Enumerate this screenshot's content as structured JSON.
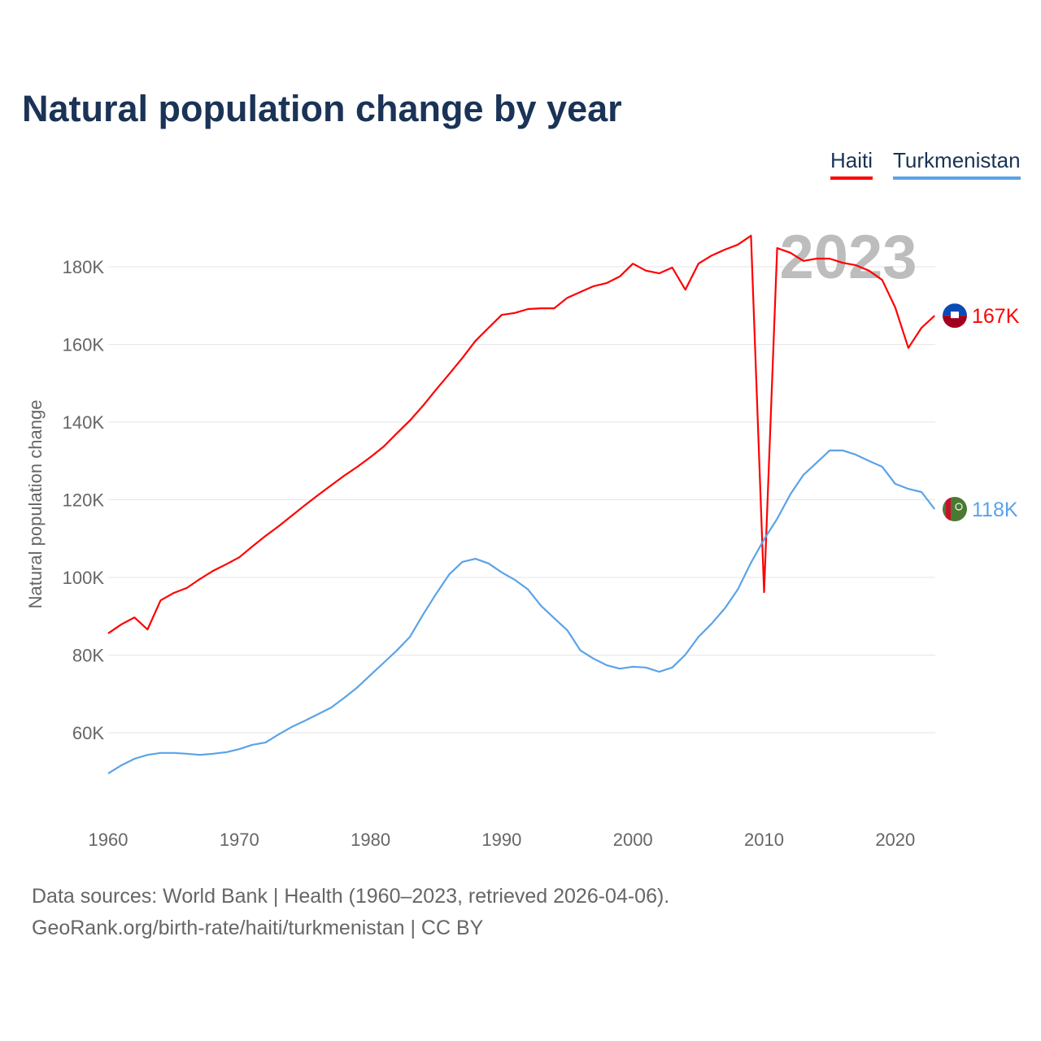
{
  "title": "Natural population change by year",
  "footer": {
    "line1": "Data sources: World Bank | Health (1960–2023, retrieved 2026-04-06).",
    "line2": "GeoRank.org/birth-rate/haiti/turkmenistan | CC BY"
  },
  "chart_data": {
    "type": "line",
    "title": "Natural population change by year",
    "xlabel": "",
    "ylabel": "Natural population change",
    "year_label": "2023",
    "xlim": [
      1960,
      2023
    ],
    "ylim": [
      40000,
      192000
    ],
    "x_ticks": [
      "1960",
      "1970",
      "1980",
      "1990",
      "2000",
      "2010",
      "2020"
    ],
    "y_ticks": [
      {
        "value": 60000,
        "label": "60K"
      },
      {
        "value": 80000,
        "label": "80K"
      },
      {
        "value": 100000,
        "label": "100K"
      },
      {
        "value": 120000,
        "label": "120K"
      },
      {
        "value": 140000,
        "label": "140K"
      },
      {
        "value": 160000,
        "label": "160K"
      },
      {
        "value": 180000,
        "label": "180K"
      }
    ],
    "grid": true,
    "legend_position": "top-right",
    "x_start": 1960,
    "series": [
      {
        "name": "Haiti",
        "color": "#ff0000",
        "end_label": "167K",
        "flag": "haiti-flag",
        "values": [
          85.6,
          87.9,
          89.7,
          86.6,
          94.1,
          96.0,
          97.3,
          99.6,
          101.7,
          103.4,
          105.2,
          108.0,
          110.7,
          113.2,
          115.9,
          118.6,
          121.2,
          123.7,
          126.2,
          128.5,
          131.0,
          133.7,
          137.1,
          140.4,
          144.2,
          148.4,
          152.4,
          156.5,
          160.9,
          164.3,
          167.6,
          168.1,
          169.1,
          169.3,
          169.3,
          172.0,
          173.5,
          175.0,
          175.8,
          177.5,
          180.8,
          179.0,
          178.3,
          179.8,
          174.1,
          180.8,
          182.9,
          184.4,
          185.7,
          188.0,
          96.2,
          184.8,
          183.6,
          181.5,
          182.1,
          182.1,
          181.0,
          180.4,
          179.0,
          176.6,
          169.5,
          159.1,
          164.3,
          167.4
        ]
      },
      {
        "name": "Turkmenistan",
        "color": "#5ba3e8",
        "end_label": "118K",
        "flag": "turkmenistan-flag",
        "values": [
          49.5,
          51.6,
          53.3,
          54.3,
          54.8,
          54.8,
          54.6,
          54.3,
          54.6,
          55.0,
          55.8,
          56.9,
          57.5,
          59.6,
          61.5,
          63.1,
          64.8,
          66.5,
          69.0,
          71.7,
          74.9,
          78.0,
          81.2,
          84.7,
          90.4,
          95.8,
          100.8,
          104.0,
          104.8,
          103.6,
          101.3,
          99.4,
          96.9,
          92.7,
          89.5,
          86.4,
          81.2,
          79.1,
          77.4,
          76.5,
          77.0,
          76.8,
          75.7,
          76.8,
          80.1,
          84.7,
          88.1,
          92.0,
          96.9,
          103.8,
          109.8,
          115.1,
          121.4,
          126.4,
          129.5,
          132.7,
          132.7,
          131.6,
          130.0,
          128.5,
          124.1,
          122.8,
          122.0,
          117.6
        ]
      }
    ]
  }
}
